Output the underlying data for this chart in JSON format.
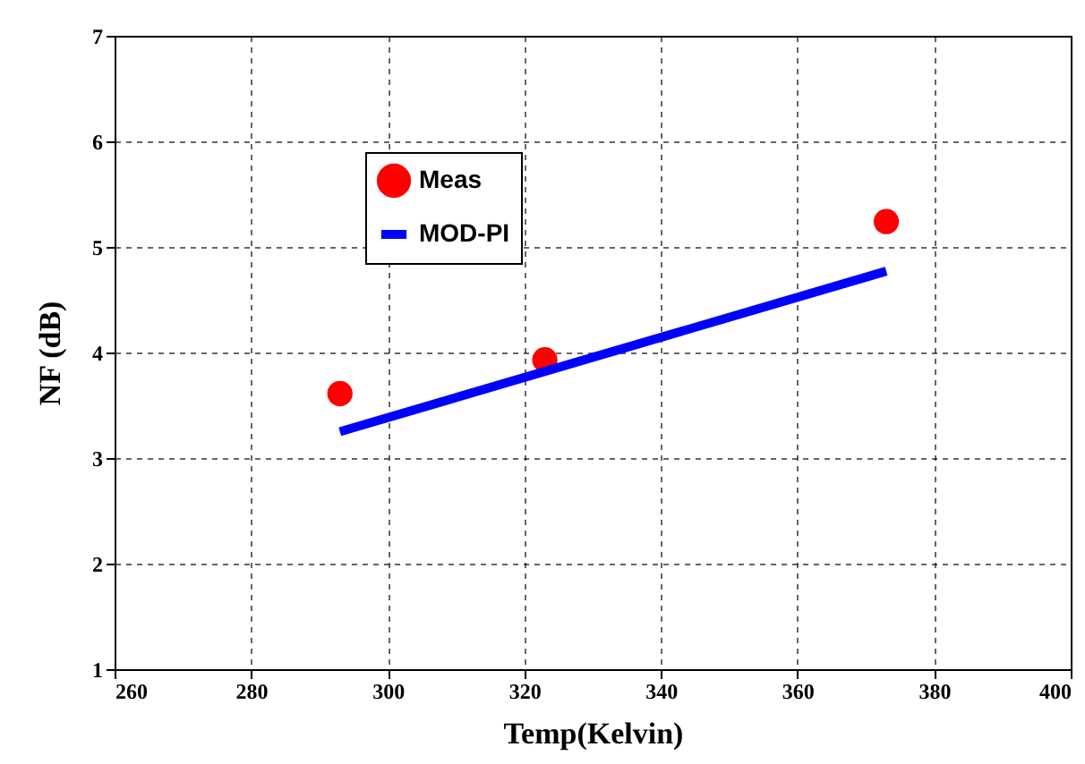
{
  "chart_data": {
    "type": "scatter",
    "xlabel": "Temp(Kelvin)",
    "ylabel": "NF (dB)",
    "series": [
      {
        "name": "Meas",
        "type": "scatter",
        "color": "#ff0000",
        "x": [
          293,
          323,
          373
        ],
        "values": [
          3.61,
          3.93,
          5.24
        ]
      },
      {
        "name": "MOD-PI",
        "type": "line",
        "color": "#0000ff",
        "x": [
          293,
          373
        ],
        "values": [
          3.25,
          4.77
        ]
      }
    ],
    "xlim": [
      260,
      400
    ],
    "xticks": [
      260,
      280,
      300,
      320,
      340,
      360,
      380,
      400
    ],
    "ylim": [
      1,
      7
    ],
    "yticks": [
      1,
      2,
      3,
      4,
      5,
      6,
      7
    ],
    "grid": true,
    "legend": "top left"
  }
}
